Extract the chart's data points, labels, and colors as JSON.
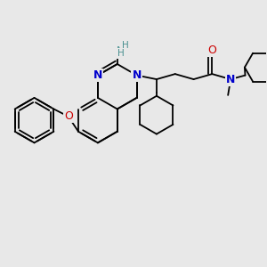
{
  "bg": "#e8e8e8",
  "bc": "#000000",
  "nc": "#0000cc",
  "oc": "#cc0000",
  "nhc": "#4a9090",
  "lw": 1.3,
  "fs": 8.5,
  "xlim": [
    0,
    10
  ],
  "ylim": [
    0,
    10
  ]
}
